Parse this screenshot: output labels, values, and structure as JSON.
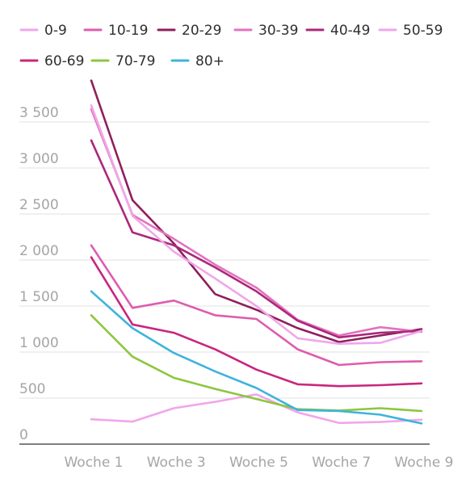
{
  "chart_data": {
    "type": "line",
    "title": "",
    "xlabel": "",
    "ylabel": "",
    "x": [
      1,
      2,
      3,
      4,
      5,
      6,
      7,
      8,
      9
    ],
    "x_tick_labels": [
      {
        "x": 1,
        "label": "Woche 1"
      },
      {
        "x": 3,
        "label": "Woche 3"
      },
      {
        "x": 5,
        "label": "Woche 5"
      },
      {
        "x": 7,
        "label": "Woche 7"
      },
      {
        "x": 9,
        "label": "Woche 9"
      }
    ],
    "ylim": [
      0,
      3500
    ],
    "y_ticks": [
      {
        "value": 0,
        "label": "0"
      },
      {
        "value": 500,
        "label": "500"
      },
      {
        "value": 1000,
        "label": "1 000"
      },
      {
        "value": 1500,
        "label": "1 500"
      },
      {
        "value": 2000,
        "label": "2 000"
      },
      {
        "value": 2500,
        "label": "2 500"
      },
      {
        "value": 3000,
        "label": "3 000"
      },
      {
        "value": 3500,
        "label": "3 500"
      }
    ],
    "grid": true,
    "legend_position": "top",
    "series": [
      {
        "name": "0-9",
        "color": "#f0a6ea",
        "values": [
          270,
          245,
          390,
          460,
          540,
          345,
          230,
          240,
          265
        ]
      },
      {
        "name": "10-19",
        "color": "#de5cae",
        "values": [
          2160,
          1480,
          1560,
          1400,
          1360,
          1030,
          860,
          890,
          900
        ]
      },
      {
        "name": "20-29",
        "color": "#8e1f5c",
        "values": [
          3950,
          2650,
          2180,
          1630,
          1460,
          1260,
          1110,
          1180,
          1250
        ]
      },
      {
        "name": "30-39",
        "color": "#e273bf",
        "values": [
          3640,
          2490,
          2230,
          1950,
          1700,
          1350,
          1180,
          1270,
          1220
        ]
      },
      {
        "name": "40-49",
        "color": "#ac287a",
        "values": [
          3300,
          2300,
          2160,
          1920,
          1660,
          1340,
          1160,
          1210,
          1230
        ]
      },
      {
        "name": "50-59",
        "color": "#f0a6ea",
        "values": [
          3680,
          2480,
          2090,
          1800,
          1500,
          1150,
          1090,
          1100,
          1230
        ]
      },
      {
        "name": "60-69",
        "color": "#c9267e",
        "values": [
          2030,
          1300,
          1210,
          1030,
          810,
          650,
          630,
          640,
          660
        ]
      },
      {
        "name": "70-79",
        "color": "#8cc63f",
        "values": [
          1400,
          950,
          720,
          600,
          490,
          380,
          365,
          390,
          360
        ]
      },
      {
        "name": "80+",
        "color": "#3fb3dc",
        "values": [
          1660,
          1260,
          990,
          790,
          610,
          370,
          360,
          320,
          225
        ]
      }
    ]
  }
}
